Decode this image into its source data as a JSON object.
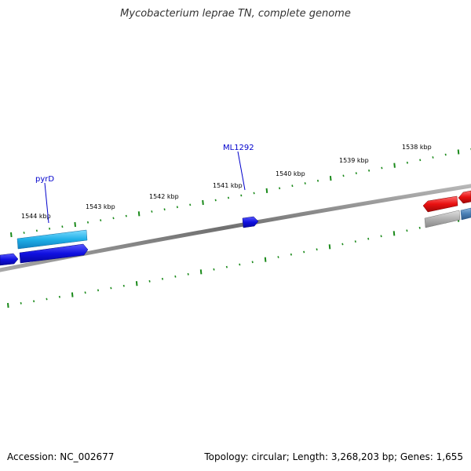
{
  "title": "Mycobacterium leprae TN, complete genome",
  "footer": {
    "accession": "Accession: NC_002677",
    "summary": "Topology: circular; Length: 3,268,203 bp; Genes: 1,655"
  },
  "scale_labels": [
    "1538 kbp",
    "1539 kbp",
    "1540 kbp",
    "1541 kbp",
    "1542 kbp",
    "1543 kbp",
    "1544 kbp"
  ],
  "gene_labels": [
    "ML1292",
    "pyrD"
  ],
  "colors": {
    "tick": "#1a8a1a",
    "backbone": "#808080",
    "gene_blue": "#1010e0",
    "gene_cyan": "#20b0e8",
    "gene_red": "#e81010",
    "gene_gray": "#b0b0b0",
    "gene_steel": "#4a7fb5",
    "label": "#0000cc"
  }
}
